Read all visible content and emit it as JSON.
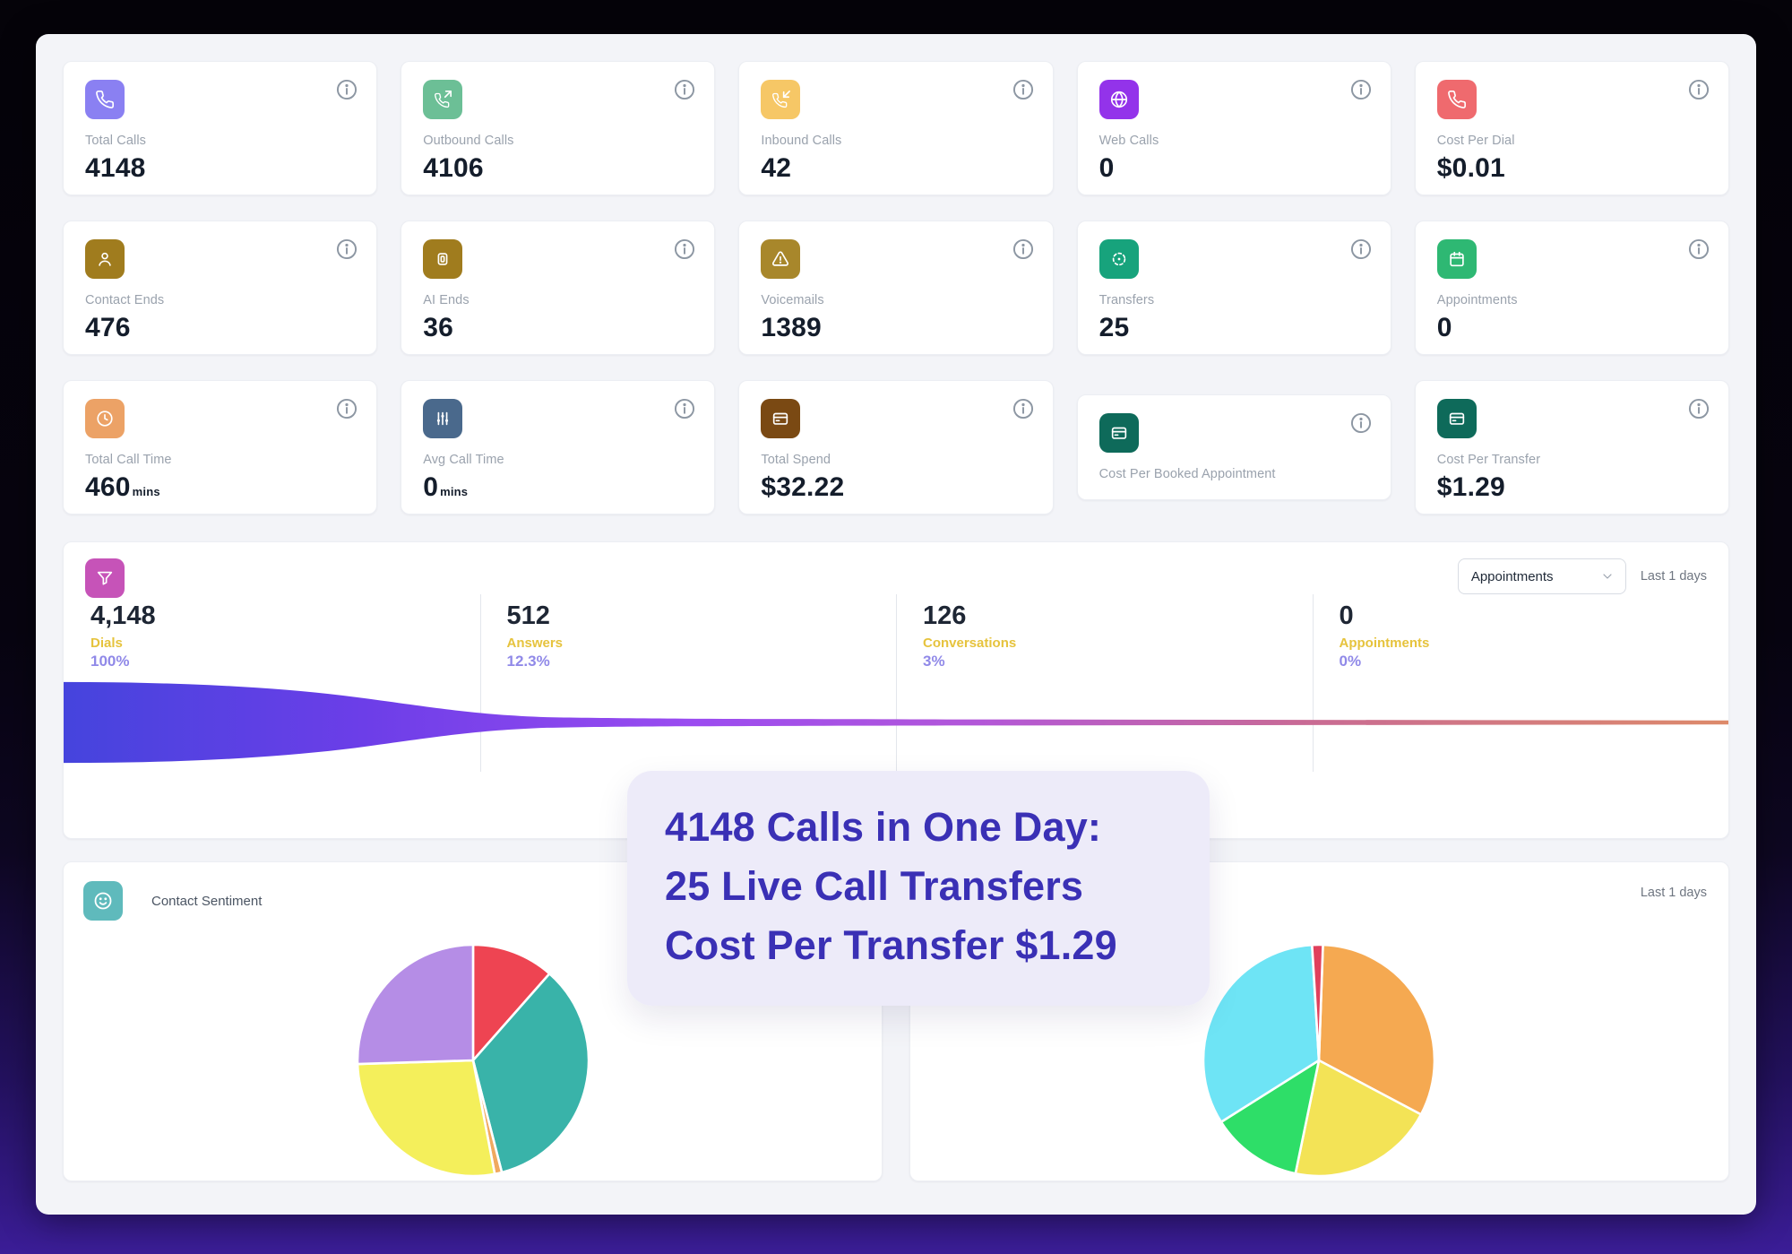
{
  "cards": [
    {
      "label": "Total Calls",
      "value": "4148",
      "unit": "",
      "icon": "phone",
      "icon_bg": "#8a80f2"
    },
    {
      "label": "Outbound Calls",
      "value": "4106",
      "unit": "",
      "icon": "phone-outgoing",
      "icon_bg": "#6cbf96"
    },
    {
      "label": "Inbound Calls",
      "value": "42",
      "unit": "",
      "icon": "phone-incoming",
      "icon_bg": "#f6c766"
    },
    {
      "label": "Web Calls",
      "value": "0",
      "unit": "",
      "icon": "globe",
      "icon_bg": "#9333ea"
    },
    {
      "label": "Cost Per Dial",
      "value": "$0.01",
      "unit": "",
      "icon": "phone",
      "icon_bg": "#ef6a6e"
    },
    {
      "label": "Contact Ends",
      "value": "476",
      "unit": "",
      "icon": "person",
      "icon_bg": "#a07c1e"
    },
    {
      "label": "AI Ends",
      "value": "36",
      "unit": "",
      "icon": "robot",
      "icon_bg": "#a07c1e"
    },
    {
      "label": "Voicemails",
      "value": "1389",
      "unit": "",
      "icon": "warning-triangle",
      "icon_bg": "#a8872b"
    },
    {
      "label": "Transfers",
      "value": "25",
      "unit": "",
      "icon": "transfer",
      "icon_bg": "#17a37c"
    },
    {
      "label": "Appointments",
      "value": "0",
      "unit": "",
      "icon": "calendar",
      "icon_bg": "#2eb873"
    },
    {
      "label": "Total Call Time",
      "value": "460",
      "unit": "mins",
      "icon": "clock",
      "icon_bg": "#eca266"
    },
    {
      "label": "Avg Call Time",
      "value": "0",
      "unit": "mins",
      "icon": "sliders",
      "icon_bg": "#4a698c"
    },
    {
      "label": "Total Spend",
      "value": "$32.22",
      "unit": "",
      "icon": "credit-card",
      "icon_bg": "#7a4913"
    },
    {
      "label": "Cost Per Booked Appointment",
      "value": "",
      "unit": "",
      "icon": "credit-card",
      "icon_bg": "#0e6a5a",
      "compact": true
    },
    {
      "label": "Cost Per Transfer",
      "value": "$1.29",
      "unit": "",
      "icon": "credit-card",
      "icon_bg": "#0e6a5a"
    }
  ],
  "funnel": {
    "dropdown_value": "Appointments",
    "range_label": "Last 1 days",
    "stages": [
      {
        "value": "4,148",
        "label": "Dials",
        "percent": "100%"
      },
      {
        "value": "512",
        "label": "Answers",
        "percent": "12.3%"
      },
      {
        "value": "126",
        "label": "Conversations",
        "percent": "3%"
      },
      {
        "value": "0",
        "label": "Appointments",
        "percent": "0%"
      }
    ]
  },
  "overlay": {
    "lines": [
      "4148 Calls in One Day:",
      "25 Live Call Transfers",
      "Cost Per Transfer $1.29"
    ]
  },
  "sentiment": {
    "title": "Contact Sentiment",
    "range_label": "Last 1 days"
  },
  "colors": {
    "accent_purple": "#3a30b5",
    "stage_label_yellow": "#e6c33d",
    "stage_percent_purple": "#9089e8",
    "funnel_gradient": [
      "#4544dd",
      "#6c3ee8",
      "#9b4cf0",
      "#b357d8",
      "#c96b93",
      "#dd8a6a"
    ]
  },
  "chart_data": [
    {
      "type": "area",
      "title": "Call conversion funnel",
      "categories": [
        "Dials",
        "Answers",
        "Conversations",
        "Appointments"
      ],
      "values": [
        4148,
        512,
        126,
        0
      ],
      "percent_of_total": [
        100,
        12.3,
        3,
        0
      ],
      "legend_position": "none",
      "grid": false
    },
    {
      "type": "pie",
      "title": "Contact Sentiment (left pie)",
      "slices": [
        {
          "label": "red",
          "value": 11.5,
          "color": "#ee4452"
        },
        {
          "label": "teal",
          "value": 34.5,
          "color": "#39b3a9"
        },
        {
          "label": "orange-sliver",
          "value": 1.0,
          "color": "#f0a95f"
        },
        {
          "label": "yellow",
          "value": 27.5,
          "color": "#f4ef5b"
        },
        {
          "label": "purple",
          "value": 25.5,
          "color": "#b58de6"
        }
      ],
      "start_angle_deg": 0,
      "direction": "clockwise"
    },
    {
      "type": "pie",
      "title": "Right pie (header hidden by callout)",
      "slices": [
        {
          "label": "orange",
          "value": 32.2,
          "color": "#f5a951"
        },
        {
          "label": "yellow",
          "value": 20.5,
          "color": "#f3e356"
        },
        {
          "label": "green",
          "value": 12.8,
          "color": "#2ede68"
        },
        {
          "label": "cyan",
          "value": 33.0,
          "color": "#6ee4f5"
        },
        {
          "label": "red-sliver",
          "value": 1.5,
          "color": "#e0405c"
        }
      ],
      "start_angle_deg": 2,
      "direction": "clockwise"
    }
  ]
}
